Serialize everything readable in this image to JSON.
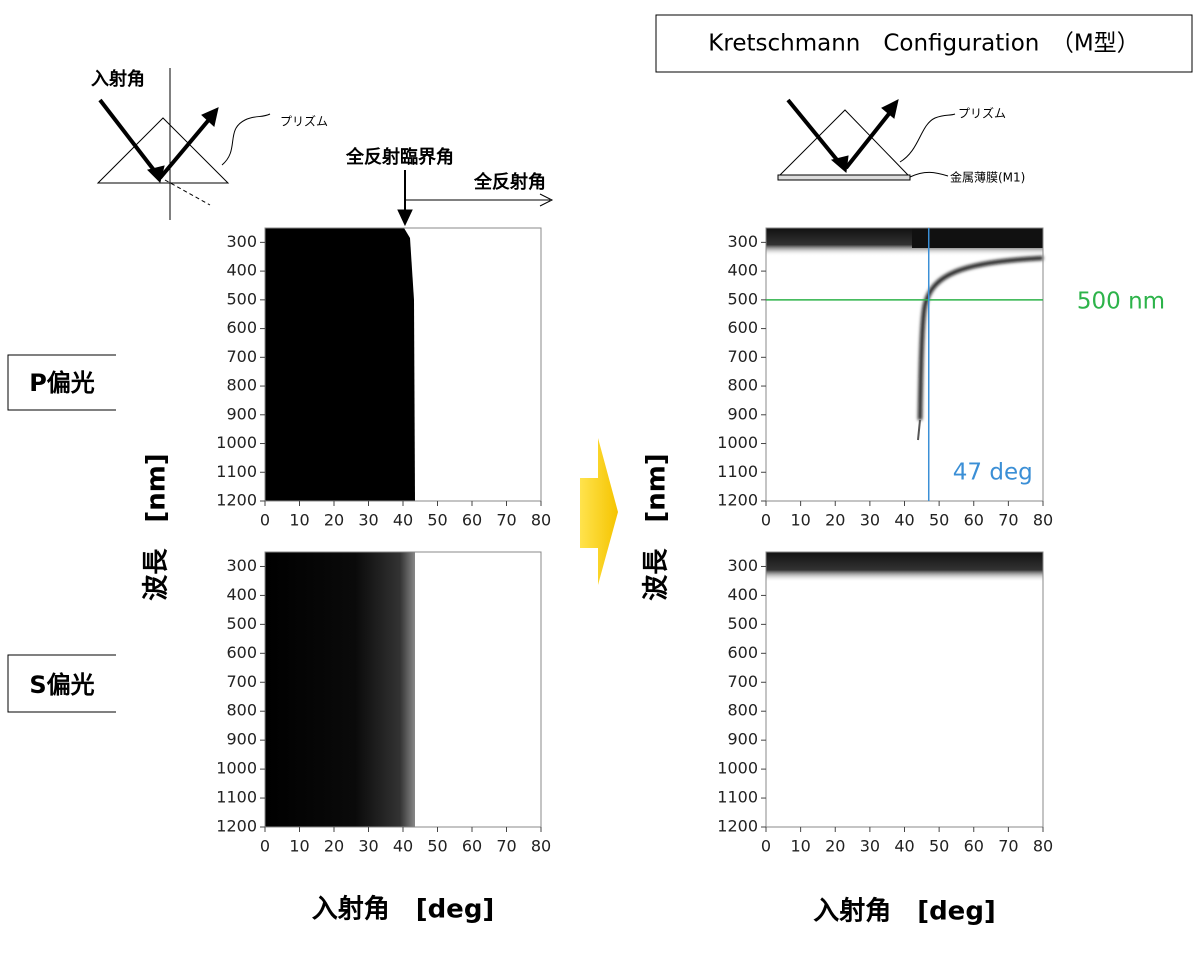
{
  "chart_data": [
    {
      "type": "heatmap",
      "xlim": [
        0,
        80
      ],
      "xticks": [
        0,
        10,
        20,
        30,
        40,
        50,
        60,
        70,
        80
      ],
      "ylim": [
        1200,
        250
      ],
      "yticks": [
        300,
        400,
        500,
        600,
        700,
        800,
        900,
        1000,
        1100,
        1200
      ],
      "ylabel": "波長　[nm]"
    },
    {
      "type": "heatmap",
      "xlim": [
        0,
        80
      ],
      "xticks": [
        0,
        10,
        20,
        30,
        40,
        50,
        60,
        70,
        80
      ],
      "ylim": [
        1200,
        250
      ],
      "yticks": [
        300,
        400,
        500,
        600,
        700,
        800,
        900,
        1000,
        1100,
        1200
      ],
      "xlabel": "入射角　[deg]"
    },
    {
      "type": "heatmap",
      "xlim": [
        0,
        80
      ],
      "xticks": [
        0,
        10,
        20,
        30,
        40,
        50,
        60,
        70,
        80
      ],
      "ylim": [
        1200,
        250
      ],
      "yticks": [
        300,
        400,
        500,
        600,
        700,
        800,
        900,
        1000,
        1100,
        1200
      ],
      "ylabel": "波長　[nm]",
      "annotations": [
        {
          "text": "500 nm",
          "axis": "y",
          "value": 500,
          "color": "#2db34a"
        },
        {
          "text": "47 deg",
          "axis": "x",
          "value": 47,
          "color": "#3b8fd6"
        }
      ]
    },
    {
      "type": "heatmap",
      "xlim": [
        0,
        80
      ],
      "xticks": [
        0,
        10,
        20,
        30,
        40,
        50,
        60,
        70,
        80
      ],
      "ylim": [
        1200,
        250
      ],
      "yticks": [
        300,
        400,
        500,
        600,
        700,
        800,
        900,
        1000,
        1100,
        1200
      ],
      "xlabel": "入射角　[deg]"
    }
  ],
  "labels": {
    "incident_angle": "入射角",
    "prism_left": "プリズム",
    "critical_angle": "全反射臨界角",
    "total_reflection": "全反射角",
    "config_title": "Kretschmann　Configuration　（M型）",
    "prism_right": "プリズム",
    "metal_film": "金属薄膜(M1)",
    "p_pol": "P偏光",
    "s_pol": "S偏光"
  }
}
